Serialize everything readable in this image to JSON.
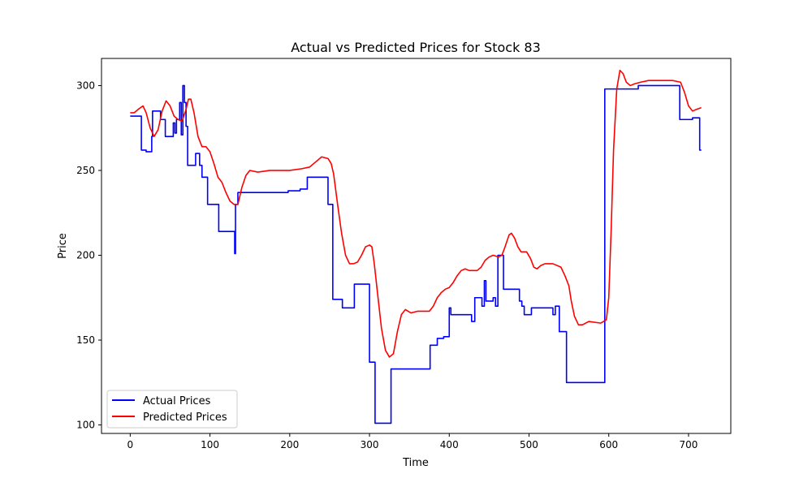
{
  "chart_data": {
    "type": "line",
    "title": "Actual vs Predicted Prices for Stock 83",
    "xlabel": "Time",
    "ylabel": "Price",
    "xlim": [
      -36,
      753
    ],
    "ylim": [
      95,
      316
    ],
    "xticks": [
      0,
      100,
      200,
      300,
      400,
      500,
      600,
      700
    ],
    "yticks": [
      100,
      150,
      200,
      250,
      300
    ],
    "grid": false,
    "legend_position": "lower-left",
    "series": [
      {
        "name": "Actual Prices",
        "color": "#0000ff",
        "step": true,
        "points": [
          [
            0,
            282
          ],
          [
            14,
            282
          ],
          [
            14,
            262
          ],
          [
            20,
            262
          ],
          [
            20,
            261
          ],
          [
            27,
            261
          ],
          [
            27,
            270
          ],
          [
            28,
            270
          ],
          [
            28,
            285
          ],
          [
            38,
            285
          ],
          [
            38,
            280
          ],
          [
            44,
            280
          ],
          [
            44,
            270
          ],
          [
            54,
            270
          ],
          [
            54,
            278
          ],
          [
            56,
            278
          ],
          [
            56,
            272
          ],
          [
            58,
            272
          ],
          [
            58,
            280
          ],
          [
            62,
            280
          ],
          [
            62,
            290
          ],
          [
            64,
            290
          ],
          [
            64,
            271
          ],
          [
            66,
            271
          ],
          [
            66,
            300
          ],
          [
            68,
            300
          ],
          [
            68,
            290
          ],
          [
            70,
            290
          ],
          [
            70,
            276
          ],
          [
            72,
            276
          ],
          [
            72,
            253
          ],
          [
            82,
            253
          ],
          [
            82,
            260
          ],
          [
            87,
            260
          ],
          [
            87,
            253
          ],
          [
            90,
            253
          ],
          [
            90,
            246
          ],
          [
            97,
            246
          ],
          [
            97,
            230
          ],
          [
            111,
            230
          ],
          [
            111,
            214
          ],
          [
            131,
            214
          ],
          [
            131,
            201
          ],
          [
            132,
            201
          ],
          [
            132,
            230
          ],
          [
            135,
            230
          ],
          [
            135,
            237
          ],
          [
            198,
            237
          ],
          [
            198,
            238
          ],
          [
            213,
            238
          ],
          [
            213,
            239
          ],
          [
            222,
            239
          ],
          [
            222,
            246
          ],
          [
            248,
            246
          ],
          [
            248,
            230
          ],
          [
            254,
            230
          ],
          [
            254,
            174
          ],
          [
            266,
            174
          ],
          [
            266,
            169
          ],
          [
            281,
            169
          ],
          [
            281,
            183
          ],
          [
            300,
            183
          ],
          [
            300,
            137
          ],
          [
            307,
            137
          ],
          [
            307,
            101
          ],
          [
            327,
            101
          ],
          [
            327,
            133
          ],
          [
            376,
            133
          ],
          [
            376,
            147
          ],
          [
            385,
            147
          ],
          [
            385,
            151
          ],
          [
            393,
            151
          ],
          [
            393,
            152
          ],
          [
            400,
            152
          ],
          [
            400,
            169
          ],
          [
            402,
            169
          ],
          [
            402,
            165
          ],
          [
            428,
            165
          ],
          [
            428,
            161
          ],
          [
            432,
            161
          ],
          [
            432,
            175
          ],
          [
            441,
            175
          ],
          [
            441,
            170
          ],
          [
            444,
            170
          ],
          [
            444,
            185
          ],
          [
            446,
            185
          ],
          [
            446,
            173
          ],
          [
            455,
            173
          ],
          [
            455,
            175
          ],
          [
            458,
            175
          ],
          [
            458,
            170
          ],
          [
            461,
            170
          ],
          [
            461,
            200
          ],
          [
            468,
            200
          ],
          [
            468,
            180
          ],
          [
            488,
            180
          ],
          [
            488,
            173
          ],
          [
            491,
            173
          ],
          [
            491,
            170
          ],
          [
            494,
            170
          ],
          [
            494,
            165
          ],
          [
            503,
            165
          ],
          [
            503,
            169
          ],
          [
            530,
            169
          ],
          [
            530,
            165
          ],
          [
            533,
            165
          ],
          [
            533,
            170
          ],
          [
            538,
            170
          ],
          [
            538,
            155
          ],
          [
            547,
            155
          ],
          [
            547,
            125
          ],
          [
            595,
            125
          ],
          [
            595,
            298
          ],
          [
            637,
            298
          ],
          [
            637,
            300
          ],
          [
            689,
            300
          ],
          [
            689,
            280
          ],
          [
            705,
            280
          ],
          [
            705,
            281
          ],
          [
            714,
            281
          ],
          [
            714,
            262
          ],
          [
            716,
            262
          ]
        ]
      },
      {
        "name": "Predicted Prices",
        "color": "#ff0000",
        "step": false,
        "points": [
          [
            0,
            284
          ],
          [
            5,
            284
          ],
          [
            10,
            286
          ],
          [
            16,
            288
          ],
          [
            20,
            284
          ],
          [
            25,
            275
          ],
          [
            30,
            270
          ],
          [
            35,
            274
          ],
          [
            40,
            285
          ],
          [
            45,
            291
          ],
          [
            50,
            288
          ],
          [
            55,
            282
          ],
          [
            60,
            280
          ],
          [
            65,
            279
          ],
          [
            70,
            286
          ],
          [
            73,
            292
          ],
          [
            76,
            292
          ],
          [
            80,
            284
          ],
          [
            85,
            270
          ],
          [
            90,
            264
          ],
          [
            95,
            264
          ],
          [
            100,
            261
          ],
          [
            105,
            254
          ],
          [
            110,
            246
          ],
          [
            115,
            243
          ],
          [
            120,
            237
          ],
          [
            125,
            232
          ],
          [
            130,
            230
          ],
          [
            135,
            230
          ],
          [
            140,
            240
          ],
          [
            145,
            247
          ],
          [
            150,
            250
          ],
          [
            160,
            249
          ],
          [
            175,
            250
          ],
          [
            200,
            250
          ],
          [
            215,
            251
          ],
          [
            225,
            252
          ],
          [
            235,
            256
          ],
          [
            240,
            258
          ],
          [
            248,
            257
          ],
          [
            252,
            254
          ],
          [
            255,
            248
          ],
          [
            260,
            230
          ],
          [
            265,
            213
          ],
          [
            270,
            200
          ],
          [
            275,
            195
          ],
          [
            280,
            195
          ],
          [
            285,
            196
          ],
          [
            290,
            200
          ],
          [
            295,
            205
          ],
          [
            300,
            206
          ],
          [
            303,
            205
          ],
          [
            306,
            195
          ],
          [
            310,
            178
          ],
          [
            315,
            157
          ],
          [
            320,
            144
          ],
          [
            325,
            140
          ],
          [
            330,
            142
          ],
          [
            335,
            155
          ],
          [
            340,
            165
          ],
          [
            345,
            168
          ],
          [
            352,
            166
          ],
          [
            360,
            167
          ],
          [
            375,
            167
          ],
          [
            380,
            170
          ],
          [
            385,
            175
          ],
          [
            390,
            178
          ],
          [
            395,
            180
          ],
          [
            400,
            181
          ],
          [
            405,
            184
          ],
          [
            410,
            188
          ],
          [
            415,
            191
          ],
          [
            420,
            192
          ],
          [
            425,
            191
          ],
          [
            435,
            191
          ],
          [
            440,
            193
          ],
          [
            445,
            197
          ],
          [
            450,
            199
          ],
          [
            455,
            200
          ],
          [
            462,
            199
          ],
          [
            466,
            200
          ],
          [
            470,
            205
          ],
          [
            475,
            212
          ],
          [
            478,
            213
          ],
          [
            482,
            210
          ],
          [
            486,
            205
          ],
          [
            490,
            202
          ],
          [
            497,
            202
          ],
          [
            502,
            198
          ],
          [
            506,
            193
          ],
          [
            510,
            192
          ],
          [
            515,
            194
          ],
          [
            520,
            195
          ],
          [
            530,
            195
          ],
          [
            540,
            193
          ],
          [
            545,
            188
          ],
          [
            550,
            182
          ],
          [
            553,
            173
          ],
          [
            557,
            164
          ],
          [
            562,
            159
          ],
          [
            567,
            159
          ],
          [
            575,
            161
          ],
          [
            590,
            160
          ],
          [
            597,
            162
          ],
          [
            600,
            175
          ],
          [
            603,
            215
          ],
          [
            606,
            262
          ],
          [
            610,
            298
          ],
          [
            614,
            309
          ],
          [
            618,
            307
          ],
          [
            622,
            302
          ],
          [
            627,
            300
          ],
          [
            632,
            301
          ],
          [
            640,
            302
          ],
          [
            650,
            303
          ],
          [
            660,
            303
          ],
          [
            680,
            303
          ],
          [
            690,
            302
          ],
          [
            695,
            296
          ],
          [
            700,
            288
          ],
          [
            705,
            285
          ],
          [
            710,
            286
          ],
          [
            716,
            287
          ]
        ]
      }
    ]
  }
}
